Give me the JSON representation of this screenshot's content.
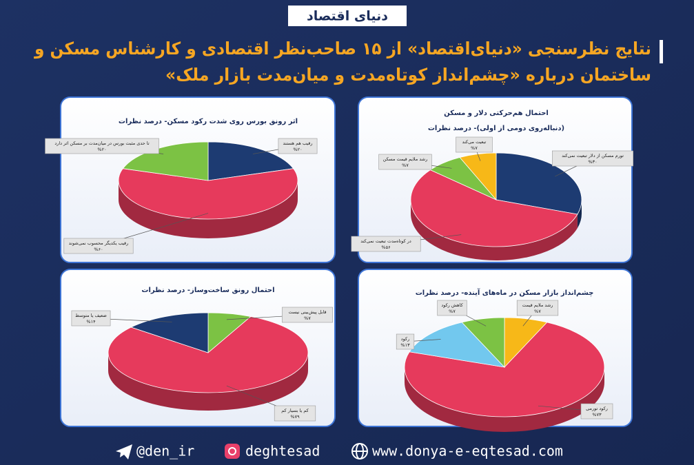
{
  "header": {
    "logo": "دنیای اقتصاد",
    "title_lines": [
      "نتایج نظرسنجی «دنیای‌اقتصاد» از ۱۵ صاحب‌نظر اقتصادی و کارشناس مسکن و",
      "ساختمان درباره «چشم‌انداز کوتاه‌مدت و میان‌مدت بازار ملک»"
    ]
  },
  "chart_data": [
    {
      "type": "pie",
      "title": "اثر رونق بورس روی شدت رکود مسکن- درصد نظرات",
      "categories": [
        "رقیب هم هستند",
        "رقیب یکدیگر محسوب نمی‌شوند",
        "تا حدی مثبت بورس در میان‌مدت بر مسکن اثر دارد"
      ],
      "values": [
        20,
        60,
        20
      ],
      "value_labels": [
        "%۲۰",
        "%۶۰",
        "%۲۰"
      ],
      "colors": [
        "#1d3b72",
        "#e63a5c",
        "#7cc244"
      ]
    },
    {
      "type": "pie",
      "title": "احتمال هم‌حرکتی دلار و مسکن",
      "subtitle": "(دنباله‌روی دومی از اولی)- درصد نظرات",
      "categories": [
        "تورم مسکن از دلار تبعیت نمی‌کند",
        "در کوتاه‌مدت تبعیت نمی‌کند",
        "رشد ملایم قیمت مسکن",
        "تبعیت می‌کند"
      ],
      "values": [
        30,
        56,
        7,
        7
      ],
      "value_labels": [
        "%۳۰",
        "%۵۶",
        "%۷",
        "%۷"
      ],
      "colors": [
        "#1d3b72",
        "#e63a5c",
        "#7cc244",
        "#f7b818"
      ]
    },
    {
      "type": "pie",
      "title": "احتمال رونق ساخت‌وساز- درصد نظرات",
      "categories": [
        "قابل پیش‌بینی نیست",
        "کم یا بسیار کم",
        "ضعیف یا متوسط"
      ],
      "values": [
        7,
        79,
        14
      ],
      "value_labels": [
        "%۷",
        "%۷۹",
        "%۱۴"
      ],
      "colors": [
        "#7cc244",
        "#e63a5c",
        "#1d3b72"
      ]
    },
    {
      "type": "pie",
      "title": "چشم‌انداز بازار مسکن در ماه‌های آینده- درصد نظرات",
      "categories": [
        "رشد ملایم قیمت",
        "رکود تورمی",
        "رکود",
        "کاهش رکود"
      ],
      "values": [
        7,
        73,
        13,
        7
      ],
      "value_labels": [
        "%۷",
        "%۷۳",
        "%۱۳",
        "%۷"
      ],
      "colors": [
        "#f7b818",
        "#e63a5c",
        "#72c8ee",
        "#7cc244"
      ]
    }
  ],
  "footer": {
    "telegram": "@den_ir",
    "instagram": "deghtesad",
    "website": "www.donya-e-eqtesad.com"
  }
}
